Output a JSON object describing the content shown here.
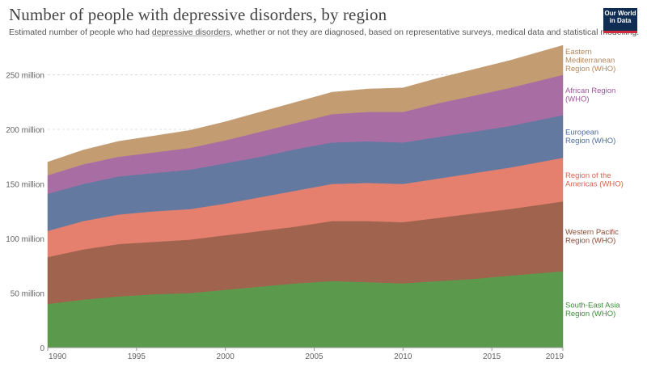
{
  "title": "Number of people with depressive disorders, by region",
  "subtitle": {
    "before": "Estimated number of people who had ",
    "link": "depressive disorders",
    "after": ", whether or not they are diagnosed, based on representative surveys, medical data and statistical modelling."
  },
  "logo": {
    "line1": "Our World",
    "line2": "in Data",
    "bg": "#0f2d52",
    "accent": "#d22a3a"
  },
  "chart_data": {
    "type": "area",
    "stacked": true,
    "x": [
      1990,
      1992,
      1994,
      1996,
      1998,
      2000,
      2002,
      2004,
      2006,
      2008,
      2010,
      2012,
      2014,
      2016,
      2019
    ],
    "xlim": [
      1990,
      2019
    ],
    "ylim": [
      0,
      280
    ],
    "y_unit": "million",
    "x_ticks": [
      1990,
      1995,
      2000,
      2005,
      2010,
      2015,
      2019
    ],
    "y_ticks": [
      {
        "value": 0,
        "label": "0"
      },
      {
        "value": 50,
        "label": "50 million"
      },
      {
        "value": 100,
        "label": "100 million"
      },
      {
        "value": 150,
        "label": "150 million"
      },
      {
        "value": 200,
        "label": "200 million"
      },
      {
        "value": 250,
        "label": "250 million"
      }
    ],
    "grid": true,
    "series": [
      {
        "name": "South-East Asia Region (WHO)",
        "label_lines": [
          "South-East Asia",
          "Region (WHO)"
        ],
        "color": "#5b9a4d",
        "label_color": "#3f8a3a",
        "values": [
          40,
          44,
          47,
          49,
          50,
          53,
          56,
          59,
          61,
          60,
          59,
          61,
          63,
          66,
          70
        ]
      },
      {
        "name": "Western Pacific Region (WHO)",
        "label_lines": [
          "Western Pacific",
          "Region (WHO)"
        ],
        "color": "#a0634e",
        "label_color": "#8a4b35",
        "values": [
          43,
          46,
          48,
          48,
          49,
          50,
          51,
          52,
          55,
          56,
          56,
          58,
          60,
          61,
          64
        ]
      },
      {
        "name": "Region of the Americas (WHO)",
        "label_lines": [
          "Region of the",
          "Americas (WHO)"
        ],
        "color": "#e5806e",
        "label_color": "#d9644f",
        "values": [
          24,
          26,
          27,
          28,
          28,
          29,
          31,
          33,
          34,
          35,
          35,
          36,
          37,
          38,
          40
        ]
      },
      {
        "name": "European Region (WHO)",
        "label_lines": [
          "European",
          "Region (WHO)"
        ],
        "color": "#63799f",
        "label_color": "#4c6a9c",
        "values": [
          34,
          34,
          35,
          35,
          36,
          37,
          37,
          38,
          38,
          38,
          38,
          38,
          38,
          38,
          39
        ]
      },
      {
        "name": "African Region (WHO)",
        "label_lines": [
          "African Region",
          "(WHO)"
        ],
        "color": "#a86ea4",
        "label_color": "#a2559c",
        "values": [
          17,
          18,
          18,
          19,
          20,
          21,
          23,
          24,
          26,
          27,
          28,
          31,
          33,
          35,
          37
        ]
      },
      {
        "name": "Eastern Mediterranean Region (WHO)",
        "label_lines": [
          "Eastern",
          "Mediterranean",
          "Region (WHO)"
        ],
        "color": "#c39c72",
        "label_color": "#b4865a",
        "values": [
          12,
          13,
          14,
          15,
          16,
          17,
          18,
          19,
          20,
          21,
          22,
          23,
          24,
          25,
          27
        ]
      }
    ]
  }
}
